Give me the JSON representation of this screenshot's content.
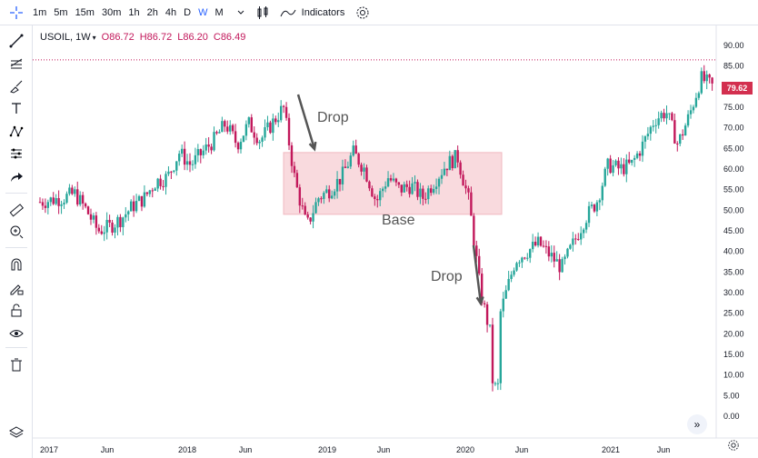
{
  "toolbar": {
    "timeframes": [
      {
        "label": "1m",
        "active": false
      },
      {
        "label": "5m",
        "active": false
      },
      {
        "label": "15m",
        "active": false
      },
      {
        "label": "30m",
        "active": false
      },
      {
        "label": "1h",
        "active": false
      },
      {
        "label": "2h",
        "active": false
      },
      {
        "label": "4h",
        "active": false
      },
      {
        "label": "D",
        "active": false
      },
      {
        "label": "W",
        "active": true
      },
      {
        "label": "M",
        "active": false
      }
    ],
    "indicators_label": "Indicators"
  },
  "legend": {
    "symbol": "USOIL, 1W",
    "open": "O86.72",
    "high": "H86.72",
    "low": "L86.20",
    "close": "C86.49"
  },
  "price_tag": "79.62",
  "annotations": {
    "drop1": "Drop",
    "base": "Base",
    "drop2": "Drop"
  },
  "colors": {
    "up": "#26a69a",
    "down": "#c2185b",
    "accent": "#2962ff",
    "zone": "#f7d1d6"
  },
  "chart_data": {
    "type": "candlestick",
    "y_axis_ticks": [
      "90.00",
      "85.00",
      "80.00",
      "75.00",
      "70.00",
      "65.00",
      "60.00",
      "55.00",
      "50.00",
      "45.00",
      "40.00",
      "35.00",
      "30.00",
      "25.00",
      "20.00",
      "15.00",
      "10.00",
      "5.00",
      "0.00"
    ],
    "x_axis_ticks": [
      "2017",
      "Jun",
      "2018",
      "Jun",
      "2019",
      "Jun",
      "2020",
      "Jun",
      "2021",
      "Jun"
    ],
    "ylim": [
      0,
      90
    ],
    "reference_line": 86.5,
    "base_zone": [
      49,
      64
    ],
    "trend": [
      [
        "2017-01",
        52
      ],
      [
        "2017-03",
        53
      ],
      [
        "2017-04",
        54
      ],
      [
        "2017-05",
        50
      ],
      [
        "2017-06",
        45
      ],
      [
        "2017-07",
        46
      ],
      [
        "2017-08",
        48
      ],
      [
        "2017-09",
        51
      ],
      [
        "2017-10",
        53
      ],
      [
        "2017-11",
        57
      ],
      [
        "2017-12",
        58
      ],
      [
        "2018-01",
        64
      ],
      [
        "2018-02",
        61
      ],
      [
        "2018-03",
        64
      ],
      [
        "2018-04",
        67
      ],
      [
        "2018-05",
        71
      ],
      [
        "2018-06",
        66
      ],
      [
        "2018-07",
        71
      ],
      [
        "2018-08",
        67
      ],
      [
        "2018-09",
        71
      ],
      [
        "2018-10",
        75
      ],
      [
        "2018-11",
        57
      ],
      [
        "2018-12",
        46
      ],
      [
        "2019-01",
        53
      ],
      [
        "2019-02",
        55
      ],
      [
        "2019-03",
        58
      ],
      [
        "2019-04",
        64
      ],
      [
        "2019-05",
        60
      ],
      [
        "2019-06",
        52
      ],
      [
        "2019-07",
        58
      ],
      [
        "2019-08",
        55
      ],
      [
        "2019-09",
        56
      ],
      [
        "2019-10",
        53
      ],
      [
        "2019-11",
        57
      ],
      [
        "2019-12",
        61
      ],
      [
        "2020-01",
        63
      ],
      [
        "2020-02",
        52
      ],
      [
        "2020-03",
        30
      ],
      [
        "2020-04",
        18
      ],
      [
        "2020-05",
        28
      ],
      [
        "2020-06",
        38
      ],
      [
        "2020-07",
        40
      ],
      [
        "2020-08",
        42
      ],
      [
        "2020-09",
        39
      ],
      [
        "2020-10",
        36
      ],
      [
        "2020-11",
        42
      ],
      [
        "2020-12",
        48
      ],
      [
        "2021-01",
        52
      ],
      [
        "2021-02",
        61
      ],
      [
        "2021-03",
        60
      ],
      [
        "2021-04",
        61
      ],
      [
        "2021-05",
        66
      ],
      [
        "2021-06",
        72
      ],
      [
        "2021-07",
        74
      ],
      [
        "2021-08",
        66
      ],
      [
        "2021-09",
        73
      ],
      [
        "2021-10",
        82
      ],
      [
        "2021-11",
        80
      ]
    ]
  }
}
